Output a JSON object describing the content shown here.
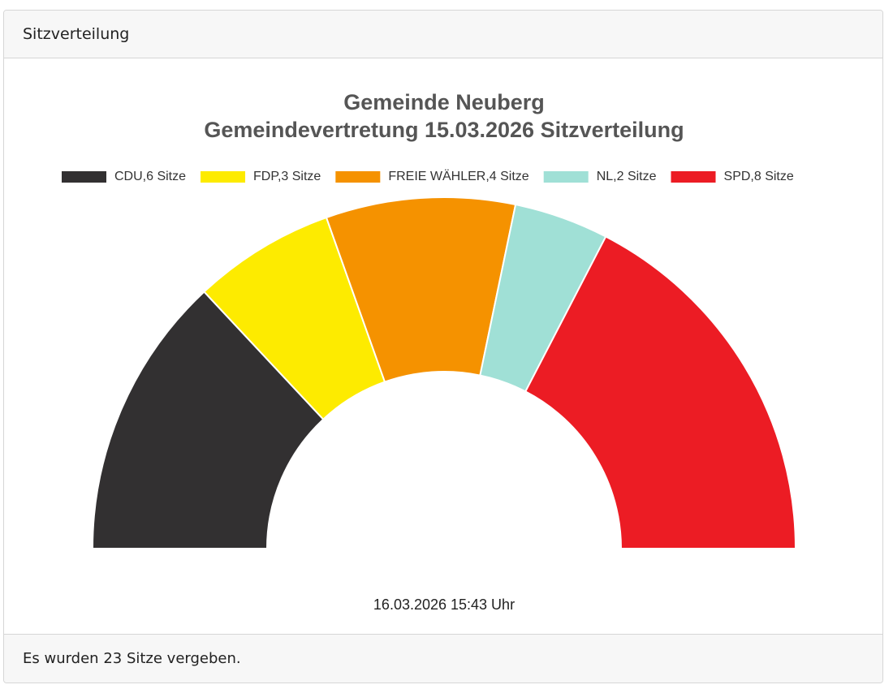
{
  "header": {
    "title": "Sitzverteilung"
  },
  "chart_data": {
    "type": "semidonut",
    "title": "Gemeinde Neuberg",
    "subtitle": "Gemeindevertretung 15.03.2026 Sitzverteilung",
    "categories": [
      "CDU,6 Sitze",
      "FDP,3 Sitze",
      "FREIE WÄHLER,4 Sitze",
      "NL,2 Sitze",
      "SPD,8 Sitze"
    ],
    "values": [
      6,
      3,
      4,
      2,
      8
    ],
    "colors": [
      "#323031",
      "#fdeb00",
      "#f59200",
      "#a0e0d6",
      "#ec1c24"
    ],
    "annotation": "16.03.2026 15:43 Uhr",
    "legend": "top"
  },
  "footer": {
    "text": "Es wurden 23 Sitze vergeben."
  }
}
